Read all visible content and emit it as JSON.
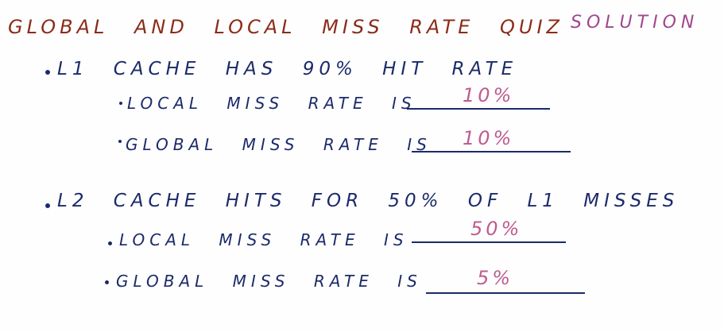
{
  "title": {
    "main": "GLOBAL AND LOCAL MISS RATE QUIZ",
    "solution_tag": "SOLUTION"
  },
  "sections": [
    {
      "heading": "L1 CACHE HAS 90% HIT RATE",
      "items": [
        {
          "label": "LOCAL MISS RATE IS",
          "answer": "10%"
        },
        {
          "label": "GLOBAL MISS RATE IS",
          "answer": "10%"
        }
      ]
    },
    {
      "heading": "L2 CACHE HITS FOR 50% OF L1 MISSES",
      "items": [
        {
          "label": "LOCAL MISS RATE IS",
          "answer": "50%"
        },
        {
          "label": "GLOBAL MISS RATE IS",
          "answer": "5%"
        }
      ]
    }
  ],
  "colors": {
    "title": "#8b2c1a",
    "solution": "#a2478c",
    "body_text": "#1c2a6a",
    "answer": "#bf5c8f"
  }
}
